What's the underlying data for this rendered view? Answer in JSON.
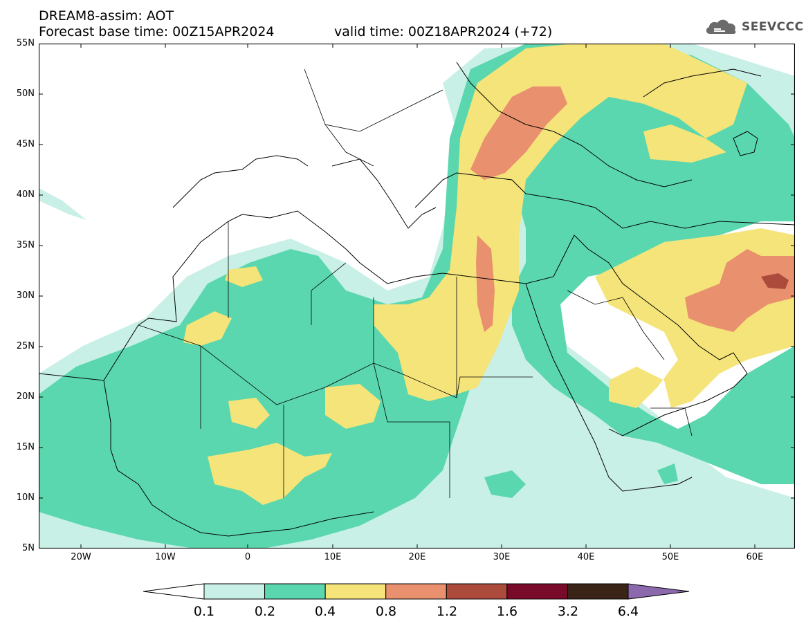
{
  "header": {
    "title": "DREAM8-assim: AOT",
    "base_time": "Forecast base time: 00Z15APR2024",
    "valid_time": "valid time: 00Z18APR2024 (+72)"
  },
  "logo": {
    "text": "SEEVCCC",
    "icon": "cloud-icon"
  },
  "map": {
    "parameter": "Aerosol Optical Thickness",
    "lon_range": [
      -25,
      65
    ],
    "lat_range": [
      5,
      55
    ],
    "lat_labels": [
      "55N",
      "50N",
      "45N",
      "40N",
      "35N",
      "30N",
      "25N",
      "20N",
      "15N",
      "10N",
      "5N"
    ],
    "lon_labels": [
      "20W",
      "10W",
      "0",
      "10E",
      "20E",
      "30E",
      "40E",
      "50E",
      "60E"
    ]
  },
  "legend": {
    "labels": [
      "0.1",
      "0.2",
      "0.4",
      "0.8",
      "1.2",
      "1.6",
      "3.2",
      "6.4"
    ],
    "colors": [
      "#c8f0e6",
      "#5ad7ae",
      "#f5e479",
      "#e9906e",
      "#ac4a3c",
      "#7a0a2a",
      "#3a2417",
      "#8c68ad"
    ],
    "under_color": "#ffffff"
  }
}
